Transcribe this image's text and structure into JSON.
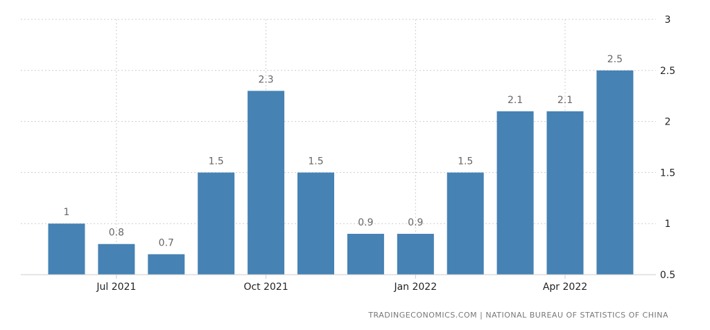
{
  "source": "TRADINGECONOMICS.COM  |  NATIONAL BUREAU OF STATISTICS OF CHINA",
  "colors": {
    "bar": "#4682b4",
    "grid": "#cccccc",
    "axis_text": "#222222",
    "data_label_text": "#666666",
    "source_text": "#777777"
  },
  "chart_data": {
    "type": "bar",
    "categories": [
      "Jun 2021",
      "Jul 2021",
      "Aug 2021",
      "Sep 2021",
      "Oct 2021",
      "Nov 2021",
      "Dec 2021",
      "Jan 2022",
      "Feb 2022",
      "Mar 2022",
      "Apr 2022",
      "May 2022"
    ],
    "values": [
      1,
      0.8,
      0.7,
      1.5,
      2.3,
      1.5,
      0.9,
      0.9,
      1.5,
      2.1,
      2.1,
      2.5
    ],
    "data_labels": [
      "1",
      "0.8",
      "0.7",
      "1.5",
      "2.3",
      "1.5",
      "0.9",
      "0.9",
      "1.5",
      "2.1",
      "2.1",
      "2.5"
    ],
    "x_tick_labels": [
      "Jul 2021",
      "Oct 2021",
      "Jan 2022",
      "Apr 2022"
    ],
    "y_ticks": [
      0.5,
      1,
      1.5,
      2,
      2.5,
      3
    ],
    "y_tick_labels": [
      "0.5",
      "1",
      "1.5",
      "2",
      "2.5",
      "3"
    ],
    "ylim": [
      0.5,
      3
    ],
    "y_axis_position": "right",
    "grid": true,
    "legend": "none",
    "title": "",
    "xlabel": "",
    "ylabel": ""
  }
}
